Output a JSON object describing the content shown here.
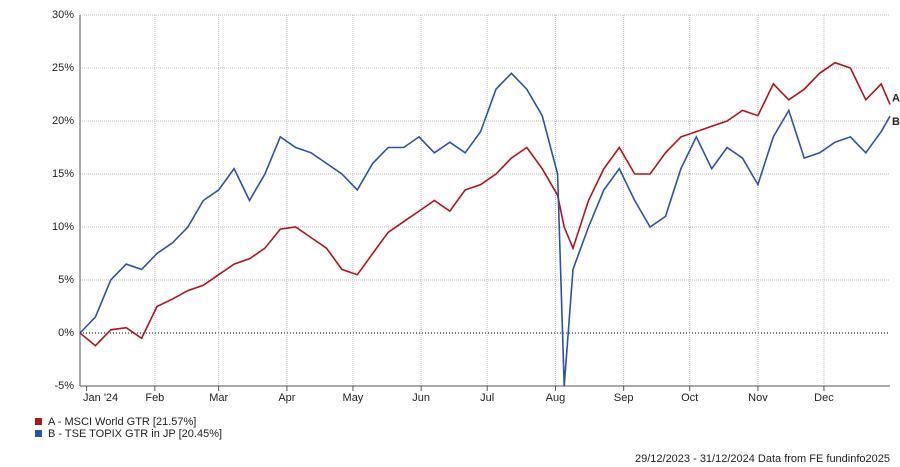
{
  "chart_data": {
    "type": "line",
    "x": [
      "2023-12-29",
      "2024-01-05",
      "2024-01-12",
      "2024-01-19",
      "2024-01-26",
      "2024-02-02",
      "2024-02-09",
      "2024-02-16",
      "2024-02-23",
      "2024-03-01",
      "2024-03-08",
      "2024-03-15",
      "2024-03-22",
      "2024-03-29",
      "2024-04-05",
      "2024-04-12",
      "2024-04-19",
      "2024-04-26",
      "2024-05-03",
      "2024-05-10",
      "2024-05-17",
      "2024-05-24",
      "2024-05-31",
      "2024-06-07",
      "2024-06-14",
      "2024-06-21",
      "2024-06-28",
      "2024-07-05",
      "2024-07-12",
      "2024-07-19",
      "2024-07-26",
      "2024-08-02",
      "2024-08-05",
      "2024-08-09",
      "2024-08-16",
      "2024-08-23",
      "2024-08-30",
      "2024-09-06",
      "2024-09-13",
      "2024-09-20",
      "2024-09-27",
      "2024-10-04",
      "2024-10-11",
      "2024-10-18",
      "2024-10-25",
      "2024-11-01",
      "2024-11-08",
      "2024-11-15",
      "2024-11-22",
      "2024-11-29",
      "2024-12-06",
      "2024-12-13",
      "2024-12-20",
      "2024-12-27",
      "2024-12-31"
    ],
    "series": [
      {
        "name": "A - MSCI World GTR [21.57%]",
        "end_label": "A",
        "color": "#b0151c",
        "values": [
          0,
          -1.2,
          0.3,
          0.5,
          -0.5,
          2.5,
          3.2,
          4.0,
          4.5,
          5.5,
          6.5,
          7.0,
          8.0,
          9.8,
          10.0,
          9.0,
          8.0,
          6.0,
          5.5,
          7.5,
          9.5,
          10.5,
          11.5,
          12.5,
          11.5,
          13.5,
          14.0,
          15.0,
          16.5,
          17.5,
          15.5,
          13.0,
          10.0,
          8.0,
          12.5,
          15.5,
          17.5,
          15.0,
          15.0,
          17.0,
          18.5,
          19.0,
          19.5,
          20.0,
          21.0,
          20.5,
          23.5,
          22.0,
          23.0,
          24.5,
          25.5,
          25.0,
          22.0,
          23.5,
          21.57
        ]
      },
      {
        "name": "B - TSE TOPIX GTR in JP [20.45%]",
        "end_label": "B",
        "color": "#2b52a8",
        "values": [
          0,
          1.5,
          5.0,
          6.5,
          6.0,
          7.5,
          8.5,
          10.0,
          12.5,
          13.5,
          15.5,
          12.5,
          15.0,
          18.5,
          17.5,
          17.0,
          16.0,
          15.0,
          13.5,
          16.0,
          17.5,
          17.5,
          18.5,
          17.0,
          18.0,
          17.0,
          19.0,
          23.0,
          24.5,
          23.0,
          20.5,
          15.0,
          -5.0,
          6.0,
          10.0,
          13.5,
          15.5,
          12.5,
          10.0,
          11.0,
          15.5,
          18.5,
          15.5,
          17.5,
          16.5,
          14.0,
          18.5,
          21.0,
          16.5,
          17.0,
          18.0,
          18.5,
          17.0,
          19.0,
          20.45
        ]
      }
    ],
    "xlim": [
      "2023-12-29",
      "2024-12-31"
    ],
    "xticks": [
      {
        "value": "2024-01-01",
        "label": "Jan '24"
      },
      {
        "value": "2024-02-01",
        "label": "Feb"
      },
      {
        "value": "2024-03-01",
        "label": "Mar"
      },
      {
        "value": "2024-04-01",
        "label": "Apr"
      },
      {
        "value": "2024-05-01",
        "label": "May"
      },
      {
        "value": "2024-06-01",
        "label": "Jun"
      },
      {
        "value": "2024-07-01",
        "label": "Jul"
      },
      {
        "value": "2024-08-01",
        "label": "Aug"
      },
      {
        "value": "2024-09-01",
        "label": "Sep"
      },
      {
        "value": "2024-10-01",
        "label": "Oct"
      },
      {
        "value": "2024-11-01",
        "label": "Nov"
      },
      {
        "value": "2024-12-01",
        "label": "Dec"
      }
    ],
    "ylim": [
      -5,
      30
    ],
    "yticks": [
      {
        "value": -5,
        "label": "-5%"
      },
      {
        "value": 0,
        "label": "0%"
      },
      {
        "value": 5,
        "label": "5%"
      },
      {
        "value": 10,
        "label": "10%"
      },
      {
        "value": 15,
        "label": "15%"
      },
      {
        "value": 20,
        "label": "20%"
      },
      {
        "value": 25,
        "label": "25%"
      },
      {
        "value": 30,
        "label": "30%"
      }
    ],
    "grid": true,
    "footer": "29/12/2023 - 31/12/2024 Data from FE fundinfo2025"
  }
}
